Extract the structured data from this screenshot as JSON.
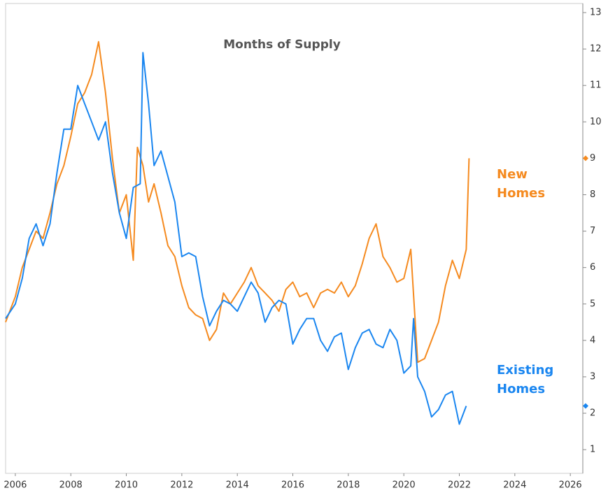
{
  "chart_data": {
    "type": "line",
    "title": "Months of Supply",
    "xlim": [
      2005.65,
      2026.45
    ],
    "xticks": [
      2006,
      2008,
      2010,
      2012,
      2014,
      2016,
      2018,
      2020,
      2022,
      2024,
      2026
    ],
    "ylim": [
      0.35,
      13.25
    ],
    "yticks": [
      1,
      2,
      3,
      4,
      5,
      6,
      7,
      8,
      9,
      10,
      11,
      12,
      13
    ],
    "series": [
      {
        "name": "New Homes",
        "color": "#f58a1f",
        "x": [
          2005.65,
          2006.0,
          2006.25,
          2006.5,
          2006.75,
          2007.0,
          2007.25,
          2007.5,
          2007.75,
          2008.0,
          2008.25,
          2008.5,
          2008.75,
          2009.0,
          2009.25,
          2009.5,
          2009.75,
          2010.0,
          2010.25,
          2010.4,
          2010.6,
          2010.8,
          2011.0,
          2011.25,
          2011.5,
          2011.75,
          2012.0,
          2012.25,
          2012.5,
          2012.75,
          2013.0,
          2013.25,
          2013.5,
          2013.75,
          2014.0,
          2014.25,
          2014.5,
          2014.75,
          2015.0,
          2015.25,
          2015.5,
          2015.75,
          2016.0,
          2016.25,
          2016.5,
          2016.75,
          2017.0,
          2017.25,
          2017.5,
          2017.75,
          2018.0,
          2018.25,
          2018.5,
          2018.75,
          2019.0,
          2019.25,
          2019.5,
          2019.75,
          2020.0,
          2020.25,
          2020.5,
          2020.75,
          2021.0,
          2021.25,
          2021.5,
          2021.75,
          2022.0,
          2022.25,
          2022.35
        ],
        "values": [
          4.5,
          5.2,
          6.0,
          6.5,
          7.0,
          6.8,
          7.5,
          8.3,
          8.8,
          9.6,
          10.5,
          10.8,
          11.3,
          12.2,
          10.8,
          9.0,
          7.5,
          8.0,
          6.2,
          9.3,
          8.8,
          7.8,
          8.3,
          7.5,
          6.6,
          6.3,
          5.5,
          4.9,
          4.7,
          4.6,
          4.0,
          4.3,
          5.3,
          5.0,
          5.3,
          5.6,
          6.0,
          5.5,
          5.3,
          5.1,
          4.8,
          5.4,
          5.6,
          5.2,
          5.3,
          4.9,
          5.3,
          5.4,
          5.3,
          5.6,
          5.2,
          5.5,
          6.1,
          6.8,
          7.2,
          6.3,
          6.0,
          5.6,
          5.7,
          6.5,
          3.4,
          3.5,
          4.0,
          4.5,
          5.5,
          6.2,
          5.7,
          6.5,
          9.0
        ]
      },
      {
        "name": "Existing Homes",
        "color": "#1a86f0",
        "x": [
          2005.65,
          2006.0,
          2006.25,
          2006.5,
          2006.75,
          2007.0,
          2007.25,
          2007.5,
          2007.75,
          2008.0,
          2008.25,
          2008.5,
          2008.75,
          2009.0,
          2009.25,
          2009.5,
          2009.75,
          2010.0,
          2010.25,
          2010.5,
          2010.6,
          2010.8,
          2011.0,
          2011.25,
          2011.5,
          2011.75,
          2012.0,
          2012.25,
          2012.5,
          2012.75,
          2013.0,
          2013.25,
          2013.5,
          2013.75,
          2014.0,
          2014.25,
          2014.5,
          2014.75,
          2015.0,
          2015.25,
          2015.5,
          2015.75,
          2016.0,
          2016.25,
          2016.5,
          2016.75,
          2017.0,
          2017.25,
          2017.5,
          2017.75,
          2018.0,
          2018.25,
          2018.5,
          2018.75,
          2019.0,
          2019.25,
          2019.5,
          2019.75,
          2020.0,
          2020.25,
          2020.35,
          2020.5,
          2020.75,
          2021.0,
          2021.25,
          2021.5,
          2021.75,
          2022.0,
          2022.25
        ],
        "values": [
          4.6,
          5.0,
          5.7,
          6.8,
          7.2,
          6.6,
          7.2,
          8.6,
          9.8,
          9.8,
          11.0,
          10.5,
          10.0,
          9.5,
          10.0,
          8.6,
          7.5,
          6.8,
          8.2,
          8.3,
          11.9,
          10.5,
          8.8,
          9.2,
          8.5,
          7.8,
          6.3,
          6.4,
          6.3,
          5.2,
          4.4,
          4.8,
          5.1,
          5.0,
          4.8,
          5.2,
          5.6,
          5.3,
          4.5,
          4.9,
          5.1,
          5.0,
          3.9,
          4.3,
          4.6,
          4.6,
          4.0,
          3.7,
          4.1,
          4.2,
          3.2,
          3.8,
          4.2,
          4.3,
          3.9,
          3.8,
          4.3,
          4.0,
          3.1,
          3.3,
          4.6,
          3.0,
          2.6,
          1.9,
          2.1,
          2.5,
          2.6,
          1.7,
          2.2
        ]
      }
    ]
  }
}
